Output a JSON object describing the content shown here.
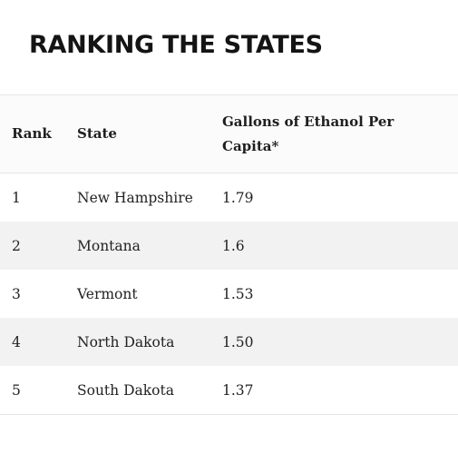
{
  "title": "RANKING THE STATES",
  "table": {
    "headers": {
      "rank": "Rank",
      "state": "State",
      "gallons": "Gallons of Ethanol Per Capita*"
    },
    "rows": [
      {
        "rank": "1",
        "state": "New Hampshire",
        "gallons": "1.79"
      },
      {
        "rank": "2",
        "state": "Montana",
        "gallons": "1.6"
      },
      {
        "rank": "3",
        "state": "Vermont",
        "gallons": "1.53"
      },
      {
        "rank": "4",
        "state": "North Dakota",
        "gallons": "1.50"
      },
      {
        "rank": "5",
        "state": "South Dakota",
        "gallons": "1.37"
      }
    ]
  }
}
